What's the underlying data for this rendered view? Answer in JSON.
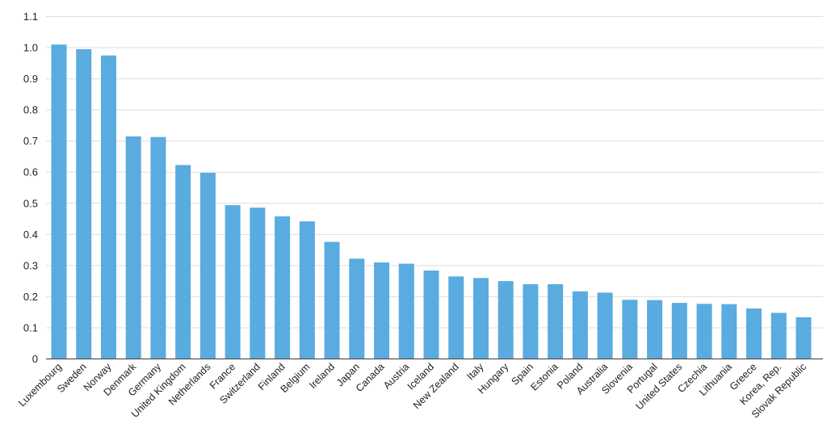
{
  "chart_data": {
    "type": "bar",
    "title": "",
    "xlabel": "",
    "ylabel": "",
    "ylim": [
      0,
      1.1
    ],
    "yticks": [
      "0",
      "0.1",
      "0.2",
      "0.3",
      "0.4",
      "0.5",
      "0.6",
      "0.7",
      "0.8",
      "0.9",
      "1.0",
      "1.1"
    ],
    "grid": true,
    "bar_color": "#5aabdf",
    "categories": [
      "Luxembourg",
      "Sweden",
      "Norway",
      "Denmark",
      "Germany",
      "United Kingdom",
      "Netherlands",
      "France",
      "Switzerland",
      "Finland",
      "Belgium",
      "Ireland",
      "Japan",
      "Canada",
      "Austria",
      "Iceland",
      "New Zealand",
      "Italy",
      "Hungary",
      "Spain",
      "Estonia",
      "Poland",
      "Australia",
      "Slovenia",
      "Portugal",
      "United States",
      "Czechia",
      "Lithuania",
      "Greece",
      "Korea, Rep.",
      "Slovak Republic"
    ],
    "values": [
      1.01,
      0.995,
      0.975,
      0.715,
      0.713,
      0.623,
      0.598,
      0.494,
      0.486,
      0.458,
      0.442,
      0.376,
      0.322,
      0.31,
      0.306,
      0.284,
      0.265,
      0.26,
      0.25,
      0.24,
      0.24,
      0.217,
      0.213,
      0.19,
      0.189,
      0.18,
      0.177,
      0.176,
      0.162,
      0.148,
      0.134
    ]
  }
}
